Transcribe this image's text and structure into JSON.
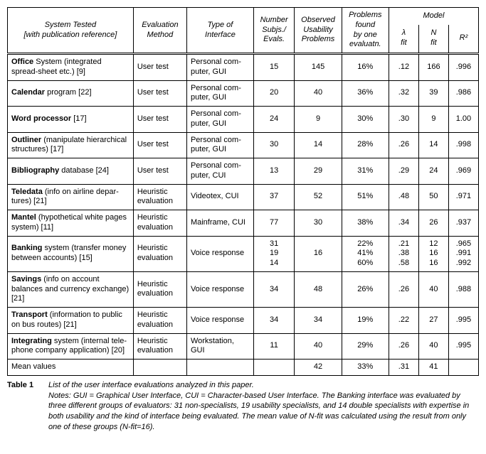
{
  "table": {
    "headers": {
      "system": "System Tested\n[with publication reference]",
      "eval": "Evaluation\nMethod",
      "type": "Type of\nInterface",
      "subjs": "Number\nSubjs./\nEvals.",
      "obs": "Observed\nUsability\nProblems",
      "found": "Problems\nfound\nby one\nevaluatn.",
      "model_group": "Model",
      "lambda": "λ\nfit",
      "nfit": "N\nfit",
      "r2": "R²"
    },
    "rows": [
      {
        "system_bold": "Office",
        "system_rest": " System (integrated spread-sheet etc.) [9]",
        "eval": "User test",
        "type": "Personal com-puter, GUI",
        "subjs": "15",
        "obs": "145",
        "found": "16%",
        "lambda": ".12",
        "nfit": "166",
        "r2": ".996"
      },
      {
        "system_bold": "Calendar",
        "system_rest": " program [22]",
        "eval": "User test",
        "type": "Personal com-puter, GUI",
        "subjs": "20",
        "obs": "40",
        "found": "36%",
        "lambda": ".32",
        "nfit": "39",
        "r2": ".986"
      },
      {
        "system_bold": "Word processor",
        "system_rest": " [17]",
        "eval": "User test",
        "type": "Personal com-puter, GUI",
        "subjs": "24",
        "obs": "9",
        "found": "30%",
        "lambda": ".30",
        "nfit": "9",
        "r2": "1.00"
      },
      {
        "system_bold": "Outliner",
        "system_rest": " (manipulate hierarchical structures) [17]",
        "eval": "User test",
        "type": "Personal com-puter, GUI",
        "subjs": "30",
        "obs": "14",
        "found": "28%",
        "lambda": ".26",
        "nfit": "14",
        "r2": ".998"
      },
      {
        "system_bold": "Bibliography",
        "system_rest": " database [24]",
        "eval": "User test",
        "type": "Personal com-puter, CUI",
        "subjs": "13",
        "obs": "29",
        "found": "31%",
        "lambda": ".29",
        "nfit": "24",
        "r2": ".969"
      },
      {
        "system_bold": "Teledata",
        "system_rest": " (info on airline depar-tures) [21]",
        "eval": "Heuristic evaluation",
        "type": "Videotex, CUI",
        "subjs": "37",
        "obs": "52",
        "found": "51%",
        "lambda": ".48",
        "nfit": "50",
        "r2": ".971"
      },
      {
        "system_bold": "Mantel",
        "system_rest": " (hypothetical white pages system) [11]",
        "eval": "Heuristic evaluation",
        "type": "Mainframe, CUI",
        "subjs": "77",
        "obs": "30",
        "found": "38%",
        "lambda": ".34",
        "nfit": "26",
        "r2": ".937"
      },
      {
        "system_bold": "Banking",
        "system_rest": " system (transfer money between accounts) [15]",
        "eval": "Heuristic evaluation",
        "type": "Voice response",
        "subjs": "31\n19\n14",
        "obs": "16",
        "found": "22%\n41%\n60%",
        "lambda": ".21\n.38\n.58",
        "nfit": "12\n16\n16",
        "r2": ".965\n.991\n.992"
      },
      {
        "system_bold": "Savings",
        "system_rest": " (info on account balances and currency exchange) [21]",
        "eval": "Heuristic evaluation",
        "type": "Voice response",
        "subjs": "34",
        "obs": "48",
        "found": "26%",
        "lambda": ".26",
        "nfit": "40",
        "r2": ".988"
      },
      {
        "system_bold": "Transport",
        "system_rest": " (information to public on bus routes) [21]",
        "eval": "Heuristic evaluation",
        "type": "Voice response",
        "subjs": "34",
        "obs": "34",
        "found": "19%",
        "lambda": ".22",
        "nfit": "27",
        "r2": ".995"
      },
      {
        "system_bold": "Integrating",
        "system_rest": " system (internal tele-phone company application) [20]",
        "eval": "Heuristic evaluation",
        "type": "Workstation, GUI",
        "subjs": "11",
        "obs": "40",
        "found": "29%",
        "lambda": ".26",
        "nfit": "40",
        "r2": ".995"
      }
    ],
    "mean_row": {
      "label": "Mean values",
      "subjs": "",
      "obs": "42",
      "found": "33%",
      "lambda": ".31",
      "nfit": "41",
      "r2": ""
    }
  },
  "caption": {
    "label": "Table 1",
    "line1": "List of the user interface evaluations analyzed in this paper.",
    "notes": "Notes: GUI = Graphical User Interface, CUI = Character-based User Interface. The Banking interface was evaluated by three different groups of evaluators: 31 non-specialists, 19 usability specialists, and 14 double specialists with expertise in both usability and the kind of interface being evaluated. The mean value of N-fit was calculated using the result from only one of these groups (N-fit=16)."
  }
}
